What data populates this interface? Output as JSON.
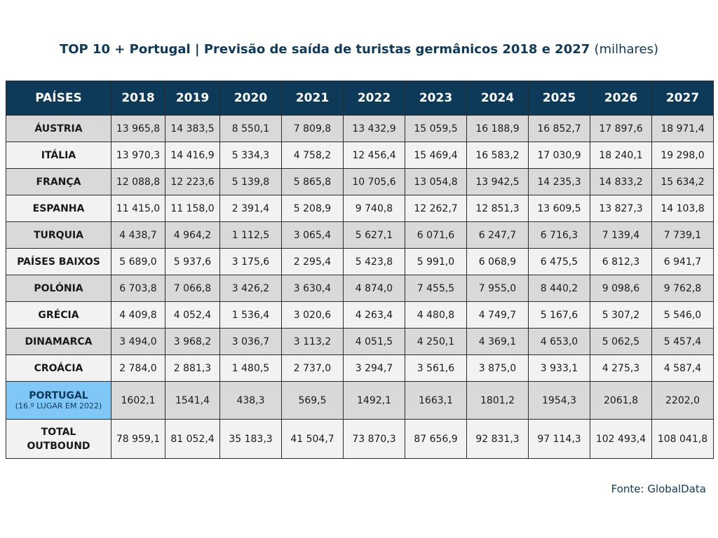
{
  "title": {
    "main": "TOP 10 + Portugal | Previsão de saída de turistas germânicos 2018 e 2027",
    "unit": "(milhares)"
  },
  "header": {
    "country_col": "PAÍSES",
    "years": [
      "2018",
      "2019",
      "2020",
      "2021",
      "2022",
      "2023",
      "2024",
      "2025",
      "2026",
      "2027"
    ]
  },
  "rows": [
    {
      "country": "ÁUSTRIA",
      "values": [
        "13 965,8",
        "14 383,5",
        "8 550,1",
        "7 809,8",
        "13 432,9",
        "15 059,5",
        "16 188,9",
        "16 852,7",
        "17 897,6",
        "18 971,4"
      ]
    },
    {
      "country": "ITÁLIA",
      "values": [
        "13 970,3",
        "14 416,9",
        "5 334,3",
        "4 758,2",
        "12 456,4",
        "15 469,4",
        "16 583,2",
        "17 030,9",
        "18 240,1",
        "19 298,0"
      ]
    },
    {
      "country": "FRANÇA",
      "values": [
        "12 088,8",
        "12 223,6",
        "5 139,8",
        "5 865,8",
        "10 705,6",
        "13 054,8",
        "13 942,5",
        "14 235,3",
        "14 833,2",
        "15 634,2"
      ]
    },
    {
      "country": "ESPANHA",
      "values": [
        "11 415,0",
        "11 158,0",
        "2 391,4",
        "5 208,9",
        "9 740,8",
        "12 262,7",
        "12 851,3",
        "13 609,5",
        "13 827,3",
        "14 103,8"
      ]
    },
    {
      "country": "TURQUIA",
      "values": [
        "4 438,7",
        "4 964,2",
        "1 112,5",
        "3 065,4",
        "5 627,1",
        "6 071,6",
        "6 247,7",
        "6 716,3",
        "7 139,4",
        "7 739,1"
      ]
    },
    {
      "country": "PAÍSES BAIXOS",
      "values": [
        "5 689,0",
        "5 937,6",
        "3 175,6",
        "2 295,4",
        "5 423,8",
        "5 991,0",
        "6 068,9",
        "6 475,5",
        "6 812,3",
        "6 941,7"
      ]
    },
    {
      "country": "POLÓNIA",
      "values": [
        "6 703,8",
        "7 066,8",
        "3 426,2",
        "3 630,4",
        "4 874,0",
        "7 455,5",
        "7 955,0",
        "8 440,2",
        "9 098,6",
        "9 762,8"
      ]
    },
    {
      "country": "GRÉCIA",
      "values": [
        "4 409,8",
        "4 052,4",
        "1 536,4",
        "3 020,6",
        "4 263,4",
        "4 480,8",
        "4 749,7",
        "5 167,6",
        "5 307,2",
        "5 546,0"
      ]
    },
    {
      "country": "DINAMARCA",
      "values": [
        "3 494,0",
        "3 968,2",
        "3 036,7",
        "3 113,2",
        "4 051,5",
        "4 250,1",
        "4 369,1",
        "4 653,0",
        "5 062,5",
        "5 457,4"
      ]
    },
    {
      "country": "CROÁCIA",
      "values": [
        "2 784,0",
        "2 881,3",
        "1 480,5",
        "2 737,0",
        "3 294,7",
        "3 561,6",
        "3 875,0",
        "3 933,1",
        "4 275,3",
        "4 587,4"
      ]
    }
  ],
  "portugal": {
    "country": "PORTUGAL",
    "note": "(16.º LUGAR EM 2022)",
    "values": [
      "1602,1",
      "1541,4",
      "438,3",
      "569,5",
      "1492,1",
      "1663,1",
      "1801,2",
      "1954,3",
      "2061,8",
      "2202,0"
    ]
  },
  "total": {
    "line1": "TOTAL",
    "line2": "OUTBOUND",
    "values": [
      "78 959,1",
      "81 052,4",
      "35 183,3",
      "41 504,7",
      "73 870,3",
      "87 656,9",
      "92 831,3",
      "97 114,3",
      "102 493,4",
      "108 041,8"
    ]
  },
  "source": "Fonte: GlobalData",
  "colors": {
    "header_bg": "#0e3a5a",
    "portugal_highlight": "#7fc7f7",
    "row_dark": "#d9d9d9",
    "row_light": "#f2f2f2"
  },
  "chart_data": {
    "type": "table",
    "title": "TOP 10 + Portugal | Previsão de saída de turistas germânicos 2018 e 2027 (milhares)",
    "columns": [
      "PAÍSES",
      "2018",
      "2019",
      "2020",
      "2021",
      "2022",
      "2023",
      "2024",
      "2025",
      "2026",
      "2027"
    ],
    "rows": [
      [
        "ÁUSTRIA",
        13965.8,
        14383.5,
        8550.1,
        7809.8,
        13432.9,
        15059.5,
        16188.9,
        16852.7,
        17897.6,
        18971.4
      ],
      [
        "ITÁLIA",
        13970.3,
        14416.9,
        5334.3,
        4758.2,
        12456.4,
        15469.4,
        16583.2,
        17030.9,
        18240.1,
        19298.0
      ],
      [
        "FRANÇA",
        12088.8,
        12223.6,
        5139.8,
        5865.8,
        10705.6,
        13054.8,
        13942.5,
        14235.3,
        14833.2,
        15634.2
      ],
      [
        "ESPANHA",
        11415.0,
        11158.0,
        2391.4,
        5208.9,
        9740.8,
        12262.7,
        12851.3,
        13609.5,
        13827.3,
        14103.8
      ],
      [
        "TURQUIA",
        4438.7,
        4964.2,
        1112.5,
        3065.4,
        5627.1,
        6071.6,
        6247.7,
        6716.3,
        7139.4,
        7739.1
      ],
      [
        "PAÍSES BAIXOS",
        5689.0,
        5937.6,
        3175.6,
        2295.4,
        5423.8,
        5991.0,
        6068.9,
        6475.5,
        6812.3,
        6941.7
      ],
      [
        "POLÓNIA",
        6703.8,
        7066.8,
        3426.2,
        3630.4,
        4874.0,
        7455.5,
        7955.0,
        8440.2,
        9098.6,
        9762.8
      ],
      [
        "GRÉCIA",
        4409.8,
        4052.4,
        1536.4,
        3020.6,
        4263.4,
        4480.8,
        4749.7,
        5167.6,
        5307.2,
        5546.0
      ],
      [
        "DINAMARCA",
        3494.0,
        3968.2,
        3036.7,
        3113.2,
        4051.5,
        4250.1,
        4369.1,
        4653.0,
        5062.5,
        5457.4
      ],
      [
        "CROÁCIA",
        2784.0,
        2881.3,
        1480.5,
        2737.0,
        3294.7,
        3561.6,
        3875.0,
        3933.1,
        4275.3,
        4587.4
      ],
      [
        "PORTUGAL (16.º LUGAR EM 2022)",
        1602.1,
        1541.4,
        438.3,
        569.5,
        1492.1,
        1663.1,
        1801.2,
        1954.3,
        2061.8,
        2202.0
      ],
      [
        "TOTAL OUTBOUND",
        78959.1,
        81052.4,
        35183.3,
        41504.7,
        73870.3,
        87656.9,
        92831.3,
        97114.3,
        102493.4,
        108041.8
      ]
    ]
  }
}
